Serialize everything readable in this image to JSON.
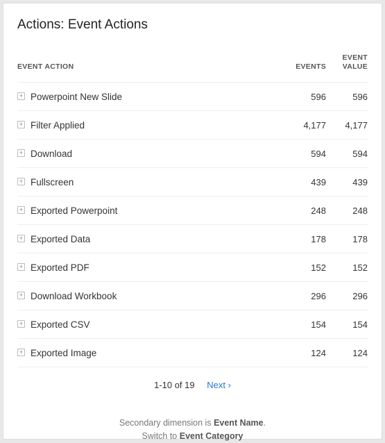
{
  "title": "Actions: Event Actions",
  "columns": {
    "action": "EVENT ACTION",
    "events": "EVENTS",
    "value": "EVENT VALUE"
  },
  "rows": [
    {
      "action": "Powerpoint New Slide",
      "events": "596",
      "value": "596"
    },
    {
      "action": "Filter Applied",
      "events": "4,177",
      "value": "4,177"
    },
    {
      "action": "Download",
      "events": "594",
      "value": "594"
    },
    {
      "action": "Fullscreen",
      "events": "439",
      "value": "439"
    },
    {
      "action": "Exported Powerpoint",
      "events": "248",
      "value": "248"
    },
    {
      "action": "Exported Data",
      "events": "178",
      "value": "178"
    },
    {
      "action": "Exported PDF",
      "events": "152",
      "value": "152"
    },
    {
      "action": "Download Workbook",
      "events": "296",
      "value": "296"
    },
    {
      "action": "Exported CSV",
      "events": "154",
      "value": "154"
    },
    {
      "action": "Exported Image",
      "events": "124",
      "value": "124"
    }
  ],
  "pager": {
    "range": "1-10 of 19",
    "next": "Next"
  },
  "footer": {
    "line1_a": "Secondary dimension is ",
    "line1_b": "Event Name",
    "line1_c": ".",
    "switch_a": "Switch to ",
    "switch_b": "Event Category"
  }
}
